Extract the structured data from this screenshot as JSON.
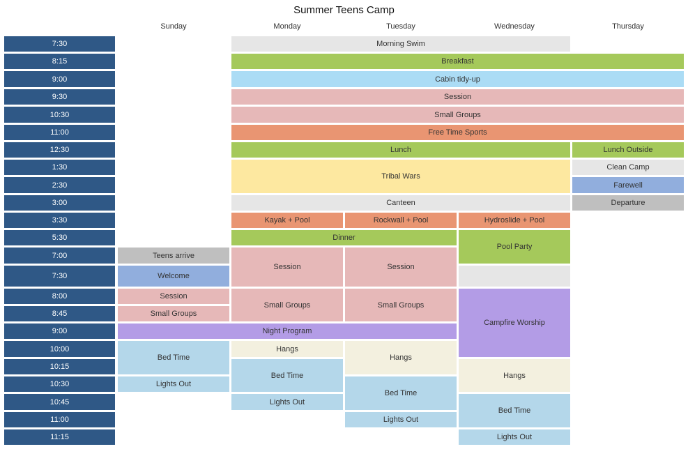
{
  "title": "Summer Teens Camp",
  "days": [
    "Sunday",
    "Monday",
    "Tuesday",
    "Wednesday",
    "Thursday"
  ],
  "times": [
    "7:30",
    "8:15",
    "9:00",
    "9:30",
    "10:30",
    "11:00",
    "12:30",
    "1:30",
    "2:30",
    "3:00",
    "3:30",
    "5:30",
    "7:00",
    "7:30",
    "8:00",
    "8:45",
    "9:00",
    "10:00",
    "10:15",
    "10:30",
    "10:45",
    "11:00",
    "11:15"
  ],
  "colors": {
    "time_cell": "#2f5886",
    "gray_light": "#e6e6e6",
    "green": "#a5c95b",
    "blue_light": "#abdcf5",
    "pink": "#e6b8b8",
    "orange": "#e99572",
    "yellow": "#fde8a0",
    "periwinkle": "#91aedd",
    "gray_dark": "#bfbfbf",
    "purple": "#b39ce6",
    "pale_blue": "#b4d7ea",
    "cream": "#f3f0df"
  },
  "events": {
    "morning_swim": "Morning Swim",
    "breakfast": "Breakfast",
    "cabin_tidy": "Cabin tidy-up",
    "session_am": "Session",
    "small_groups_am": "Small Groups",
    "free_time_sports": "Free Time Sports",
    "lunch": "Lunch",
    "lunch_outside": "Lunch Outside",
    "tribal_wars": "Tribal Wars",
    "clean_camp": "Clean Camp",
    "farewell": "Farewell",
    "canteen": "Canteen",
    "departure": "Departure",
    "kayak_pool": "Kayak + Pool",
    "rockwall_pool": "Rockwall + Pool",
    "hydroslide_pool": "Hydroslide + Pool",
    "dinner": "Dinner",
    "pool_party": "Pool Party",
    "teens_arrive": "Teens arrive",
    "welcome": "Welcome",
    "session_sun": "Session",
    "small_groups_sun": "Small Groups",
    "session_mon": "Session",
    "session_tue": "Session",
    "small_groups_mon": "Small Groups",
    "small_groups_tue": "Small Groups",
    "campfire_worship": "Campfire Worship",
    "night_program": "Night Program",
    "bed_time_sun": "Bed Time",
    "lights_out_sun": "Lights Out",
    "hangs_mon": "Hangs",
    "bed_time_mon": "Bed Time",
    "lights_out_mon": "Lights Out",
    "hangs_tue": "Hangs",
    "bed_time_tue": "Bed Time",
    "lights_out_tue": "Lights Out",
    "hangs_wed": "Hangs",
    "bed_time_wed": "Bed Time",
    "lights_out_wed": "Lights Out"
  }
}
